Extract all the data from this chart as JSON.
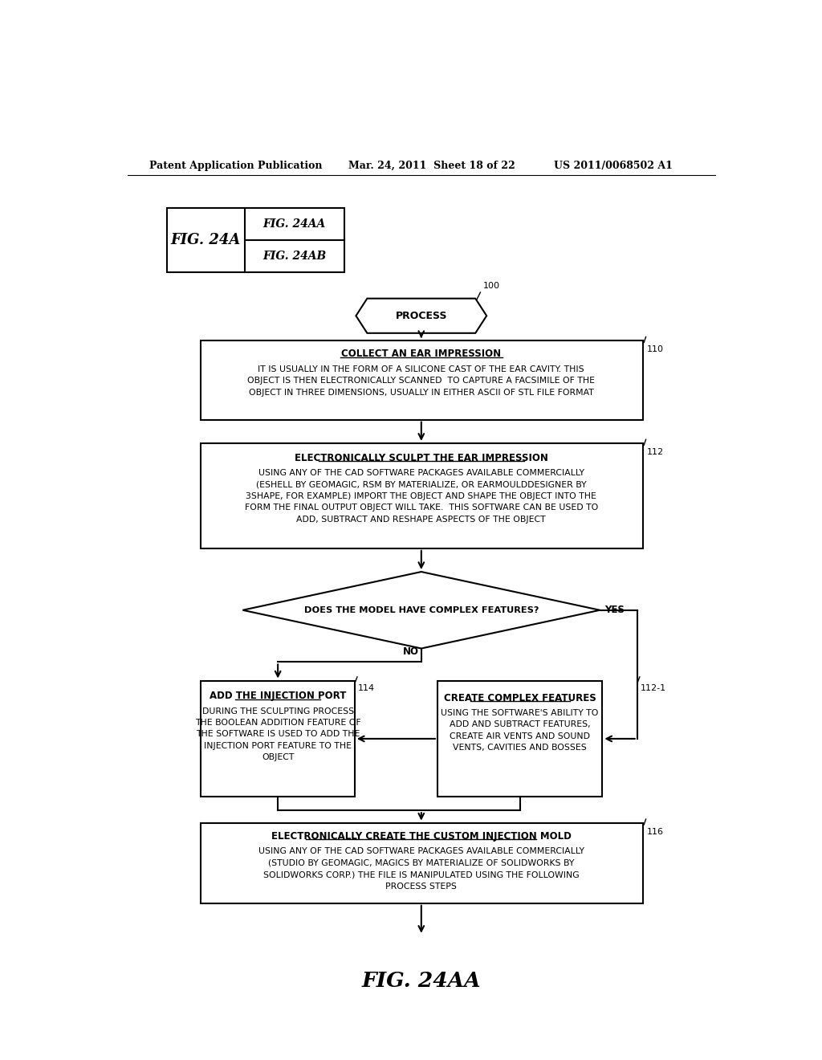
{
  "bg_color": "#ffffff",
  "header_left": "Patent Application Publication",
  "header_mid": "Mar. 24, 2011  Sheet 18 of 22",
  "header_right": "US 2011/0068502 A1",
  "fig_label_main": "FIG. 24A",
  "fig_label_aa": "FIG. 24AA",
  "fig_label_ab": "FIG. 24AB",
  "process_label": "PROCESS",
  "ref_100": "100",
  "ref_110": "110",
  "ref_112": "112",
  "ref_114": "114",
  "ref_112_1": "112-1",
  "ref_116": "116",
  "box110_title": "COLLECT AN EAR IMPRESSION",
  "box110_body": "IT IS USUALLY IN THE FORM OF A SILICONE CAST OF THE EAR CAVITY. THIS\nOBJECT IS THEN ELECTRONICALLY SCANNED  TO CAPTURE A FACSIMILE OF THE\nOBJECT IN THREE DIMENSIONS, USUALLY IN EITHER ASCII OF STL FILE FORMAT",
  "box112_title": "ELECTRONICALLY SCULPT THE EAR IMPRESSION",
  "box112_body": "USING ANY OF THE CAD SOFTWARE PACKAGES AVAILABLE COMMERCIALLY\n(ESHELL BY GEOMAGIC, RSM BY MATERIALIZE, OR EARMOULDDESIGNER BY\n3SHAPE, FOR EXAMPLE) IMPORT THE OBJECT AND SHAPE THE OBJECT INTO THE\nFORM THE FINAL OUTPUT OBJECT WILL TAKE.  THIS SOFTWARE CAN BE USED TO\nADD, SUBTRACT AND RESHAPE ASPECTS OF THE OBJECT",
  "diamond_text": "DOES THE MODEL HAVE COMPLEX FEATURES?",
  "yes_label": "YES",
  "no_label": "NO",
  "box114_title": "ADD THE INJECTION PORT",
  "box114_body": "DURING THE SCULPTING PROCESS\nTHE BOOLEAN ADDITION FEATURE OF\nTHE SOFTWARE IS USED TO ADD THE\nINJECTION PORT FEATURE TO THE\nOBJECT",
  "box112_1_title": "CREATE COMPLEX FEATURES",
  "box112_1_body": "USING THE SOFTWARE'S ABILITY TO\nADD AND SUBTRACT FEATURES,\nCREATE AIR VENTS AND SOUND\nVENTS, CAVITIES AND BOSSES",
  "box116_title": "ELECTRONICALLY CREATE THE CUSTOM INJECTION MOLD",
  "box116_body": "USING ANY OF THE CAD SOFTWARE PACKAGES AVAILABLE COMMERCIALLY\n(STUDIO BY GEOMAGIC, MAGICS BY MATERIALIZE OF SOLIDWORKS BY\nSOLIDWORKS CORP.) THE FILE IS MANIPULATED USING THE FOLLOWING\nPROCESS STEPS",
  "fig_bottom": "FIG. 24AA",
  "figw": 10.24,
  "figh": 13.2,
  "dpi": 100
}
